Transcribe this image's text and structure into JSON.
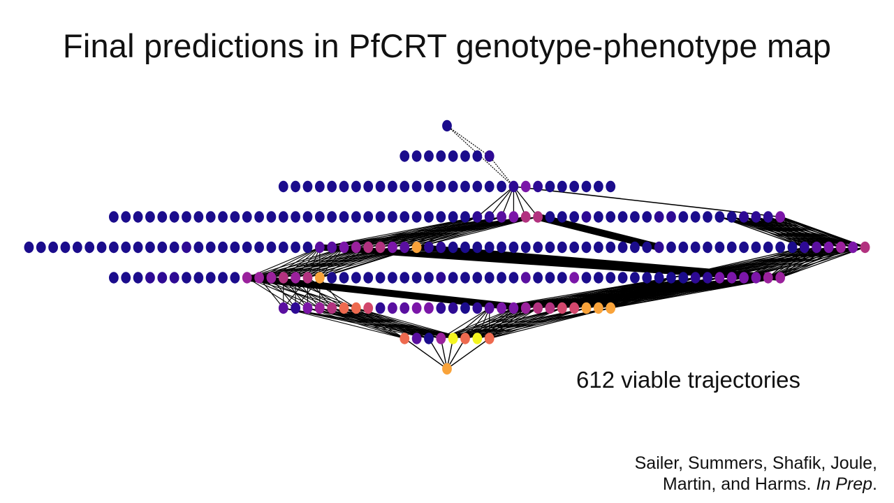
{
  "slide": {
    "title": "Final predictions in PfCRT genotype-phenotype map",
    "caption": "612 viable trajectories",
    "citation": {
      "authors_line1": "Sailer, Summers, Shafik, Joule,",
      "authors_line2": "Martin, and Harms.",
      "status": "In Prep",
      "end": "."
    }
  },
  "colors": {
    "background": "#ffffff",
    "text": "#111111",
    "edge": "#000000",
    "palette": [
      "#1b0c8c",
      "#2e0a94",
      "#5a0fa0",
      "#7b16a8",
      "#9a219c",
      "#b2327f",
      "#d2476c",
      "#ee6a4f",
      "#f9a33a",
      "#f4f520"
    ]
  },
  "network": {
    "description_free": true,
    "levels": [
      {
        "count": 1,
        "colors": [
          0
        ]
      },
      {
        "count": 8,
        "colors": [
          0,
          0,
          0,
          0,
          0,
          0,
          0,
          1
        ]
      },
      {
        "count": 28,
        "colors": [
          0,
          0,
          0,
          0,
          0,
          0,
          0,
          0,
          0,
          0,
          0,
          0,
          0,
          0,
          0,
          0,
          0,
          0,
          0,
          1,
          3,
          1,
          0,
          0,
          0,
          0,
          0,
          0
        ]
      },
      {
        "count": 56,
        "colors": [
          0,
          0,
          0,
          0,
          0,
          0,
          0,
          0,
          0,
          0,
          0,
          0,
          0,
          0,
          0,
          0,
          0,
          0,
          0,
          0,
          0,
          0,
          0,
          0,
          0,
          0,
          0,
          0,
          0,
          0,
          1,
          1,
          2,
          3,
          5,
          5,
          0,
          0,
          0,
          1,
          0,
          0,
          0,
          0,
          0,
          1,
          1,
          0,
          0,
          0,
          0,
          0,
          1,
          1,
          1,
          3
        ]
      },
      {
        "count": 70,
        "colors": [
          0,
          0,
          0,
          0,
          0,
          0,
          0,
          0,
          0,
          0,
          0,
          0,
          0,
          1,
          0,
          0,
          0,
          0,
          0,
          0,
          0,
          0,
          0,
          0,
          2,
          2,
          3,
          4,
          5,
          5,
          3,
          2,
          8,
          1,
          1,
          0,
          0,
          0,
          0,
          0,
          0,
          0,
          0,
          0,
          0,
          0,
          0,
          0,
          0,
          0,
          0,
          0,
          1,
          0,
          0,
          0,
          0,
          0,
          0,
          0,
          0,
          0,
          0,
          0,
          1,
          2,
          3,
          4,
          3,
          5
        ]
      },
      {
        "count": 56,
        "colors": [
          0,
          0,
          0,
          1,
          1,
          1,
          0,
          0,
          0,
          0,
          0,
          4,
          4,
          4,
          5,
          4,
          5,
          8,
          0,
          0,
          0,
          0,
          0,
          0,
          0,
          0,
          0,
          1,
          0,
          0,
          0,
          0,
          0,
          0,
          2,
          0,
          0,
          0,
          3,
          0,
          0,
          0,
          0,
          0,
          0,
          0,
          0,
          0,
          1,
          1,
          3,
          3,
          3,
          3,
          4,
          4
        ]
      },
      {
        "count": 28,
        "colors": [
          2,
          1,
          3,
          4,
          5,
          7,
          7,
          6,
          1,
          2,
          2,
          3,
          3,
          1,
          1,
          0,
          1,
          2,
          3,
          3,
          4,
          5,
          5,
          6,
          6,
          8,
          8,
          8
        ]
      },
      {
        "count": 8,
        "colors": [
          7,
          2,
          0,
          4,
          9,
          7,
          9,
          7
        ]
      },
      {
        "count": 1,
        "colors": [
          8
        ]
      }
    ]
  }
}
